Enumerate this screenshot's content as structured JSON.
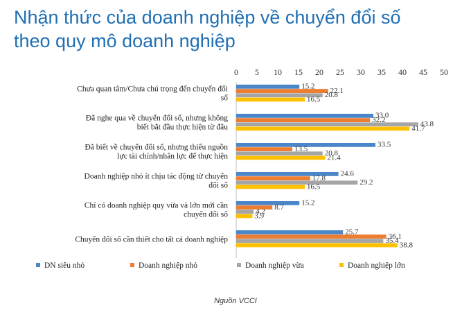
{
  "title_lines": [
    "Nhận thức của doanh nghiệp về chuyển đổi số",
    "theo quy mô doanh nghiệp"
  ],
  "source": "Nguồn VCCI",
  "chart_data": {
    "type": "bar",
    "orientation": "horizontal",
    "title": "Nhận thức của doanh nghiệp về chuyển đổi số theo quy mô doanh nghiệp",
    "xlim": [
      0,
      50
    ],
    "ticks": [
      0,
      5,
      10,
      15,
      20,
      25,
      30,
      35,
      40,
      45,
      50
    ],
    "tick_position": "top",
    "grid": false,
    "legend_position": "bottom",
    "categories": [
      [
        "Chưa quan tâm/Chưa chú trọng đến chuyển đổi",
        "số"
      ],
      [
        "Đã nghe qua về chuyển đổi số, nhưng không",
        "biết bắt đầu thực hiện từ đâu"
      ],
      [
        "Đã biết về chuyển đổi số, nhưng thiếu nguồn",
        "lực tài chính/nhân lực để thực hiện"
      ],
      [
        "Doanh nghiệp nhỏ ít chịu tác động từ chuyển",
        "đổi số"
      ],
      [
        "Chỉ có doanh nghiệp quy vừa và lớn mới cần",
        "chuyển đổi số"
      ],
      [
        "Chuyển đổi số cần thiết cho tất cả doanh nghiệp"
      ]
    ],
    "series": [
      {
        "name": "DN siêu nhỏ",
        "color": "#4a86c8",
        "values": [
          15.2,
          33.0,
          33.5,
          24.6,
          15.2,
          25.7
        ]
      },
      {
        "name": "Doanh nghiệp nhỏ",
        "color": "#ed7d31",
        "values": [
          22.1,
          32.2,
          13.5,
          17.8,
          8.7,
          36.1
        ]
      },
      {
        "name": "Doanh nghiệp vừa",
        "color": "#a5a5a5",
        "values": [
          20.8,
          43.8,
          20.8,
          29.2,
          4.2,
          35.4
        ]
      },
      {
        "name": "Doanh nghiệp lớn",
        "color": "#ffc000",
        "values": [
          16.5,
          41.7,
          21.4,
          16.5,
          3.9,
          38.8
        ]
      }
    ]
  }
}
